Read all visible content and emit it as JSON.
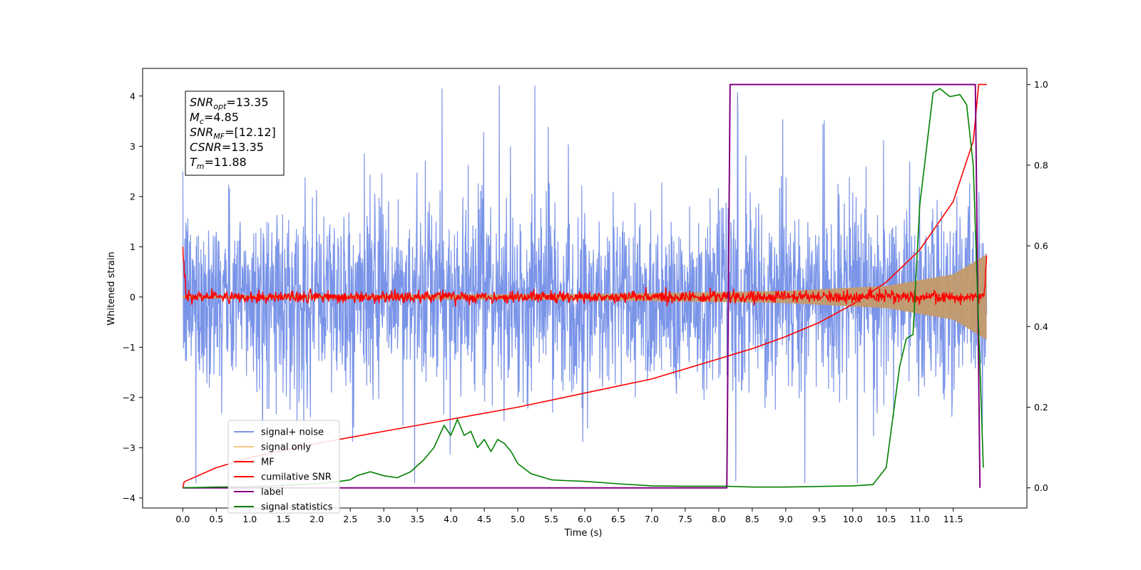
{
  "chart_data": {
    "type": "line",
    "xlabel": "Time (s)",
    "ylabel": "Whitened strain",
    "xlim": [
      -0.6,
      12.6
    ],
    "ylim": [
      -4.2,
      4.55
    ],
    "y2lim": [
      -0.05,
      1.04
    ],
    "x_ticks": [
      "0.0",
      "0.5",
      "1.0",
      "1.5",
      "2.0",
      "2.5",
      "3.0",
      "3.5",
      "4.0",
      "4.5",
      "5.0",
      "5.5",
      "6.0",
      "6.5",
      "7.0",
      "7.5",
      "8.0",
      "8.5",
      "9.0",
      "9.5",
      "10.0",
      "10.5",
      "11.0",
      "11.5"
    ],
    "y_ticks": [
      "4",
      "3",
      "2",
      "1",
      "0",
      "−1",
      "−2",
      "−3",
      "−4"
    ],
    "y2_ticks": [
      "1.0",
      "0.8",
      "0.6",
      "0.4",
      "0.2",
      "0.0"
    ],
    "annotation": {
      "lines": [
        {
          "main": "SNR",
          "sub": "opt",
          "value": "=13.35"
        },
        {
          "main": "M",
          "sub": "c",
          "value": "=4.85"
        },
        {
          "main": "SNR",
          "sub": "MF",
          "value": "=[12.12]"
        },
        {
          "main": "CSNR",
          "sub": "",
          "value": "=13.35"
        },
        {
          "main": "T",
          "sub": "m",
          "value": "=11.88"
        }
      ]
    },
    "legend": {
      "placement": "lower-left",
      "entries": [
        {
          "label": "signal+ noise",
          "color": "#7a94e8"
        },
        {
          "label": "signal only",
          "color": "#f5c77e"
        },
        {
          "label": "MF",
          "color": "#ff0000"
        },
        {
          "label": "cumilative SNR",
          "color": "#ff0000"
        },
        {
          "label": "label",
          "color": "#800080"
        },
        {
          "label": "signal statistics",
          "color": "#008000"
        }
      ]
    },
    "series": [
      {
        "name": "signal+ noise",
        "axis": "left",
        "kind": "noise",
        "t_range": [
          0.0,
          12.0
        ],
        "typical_range": [
          -2.0,
          2.0
        ],
        "extreme_range": [
          -3.7,
          4.2
        ]
      },
      {
        "name": "signal only",
        "axis": "left",
        "kind": "chirp",
        "t_range": [
          0.0,
          12.0
        ],
        "amplitude_at": [
          [
            0.0,
            0.03
          ],
          [
            6.0,
            0.06
          ],
          [
            9.0,
            0.12
          ],
          [
            10.5,
            0.22
          ],
          [
            11.5,
            0.45
          ],
          [
            12.0,
            0.85
          ]
        ]
      },
      {
        "name": "MF",
        "axis": "left",
        "kind": "noise",
        "t_range": [
          0.0,
          12.0
        ],
        "start_value": 1.0,
        "typical_range": [
          -0.12,
          0.12
        ]
      },
      {
        "name": "cumilative SNR",
        "axis": "right",
        "x": [
          0.0,
          0.02,
          0.5,
          1.0,
          2.0,
          3.0,
          4.0,
          5.0,
          6.0,
          7.0,
          8.0,
          8.5,
          9.0,
          9.5,
          10.0,
          10.5,
          11.0,
          11.5,
          11.8,
          11.88,
          12.0
        ],
        "y": [
          0.0,
          0.015,
          0.05,
          0.075,
          0.11,
          0.14,
          0.17,
          0.2,
          0.235,
          0.27,
          0.32,
          0.345,
          0.375,
          0.41,
          0.455,
          0.51,
          0.59,
          0.71,
          0.86,
          1.0,
          1.0
        ]
      },
      {
        "name": "label",
        "axis": "right",
        "x": [
          0.0,
          8.12,
          8.17,
          11.83,
          11.9
        ],
        "y": [
          0.0,
          0.0,
          1.0,
          1.0,
          0.0
        ]
      },
      {
        "name": "signal statistics",
        "axis": "right",
        "x": [
          0.0,
          0.5,
          1.0,
          1.5,
          2.0,
          2.3,
          2.5,
          2.6,
          2.8,
          3.0,
          3.2,
          3.4,
          3.6,
          3.75,
          3.9,
          4.0,
          4.1,
          4.2,
          4.3,
          4.4,
          4.5,
          4.6,
          4.7,
          4.8,
          4.9,
          5.0,
          5.2,
          5.5,
          5.7,
          6.0,
          6.5,
          7.0,
          7.5,
          8.0,
          8.1,
          8.5,
          9.0,
          10.0,
          10.3,
          10.5,
          10.7,
          10.8,
          10.9,
          11.0,
          11.2,
          11.3,
          11.45,
          11.6,
          11.7,
          11.8,
          11.9,
          11.95
        ],
        "y": [
          0.0,
          0.002,
          0.003,
          0.006,
          0.01,
          0.015,
          0.02,
          0.03,
          0.04,
          0.03,
          0.025,
          0.04,
          0.07,
          0.1,
          0.155,
          0.13,
          0.17,
          0.13,
          0.14,
          0.1,
          0.12,
          0.09,
          0.12,
          0.11,
          0.09,
          0.06,
          0.035,
          0.02,
          0.018,
          0.016,
          0.01,
          0.005,
          0.004,
          0.004,
          0.004,
          0.002,
          0.002,
          0.005,
          0.008,
          0.05,
          0.3,
          0.37,
          0.38,
          0.7,
          0.98,
          0.99,
          0.97,
          0.975,
          0.95,
          0.8,
          0.3,
          0.05
        ]
      }
    ]
  }
}
